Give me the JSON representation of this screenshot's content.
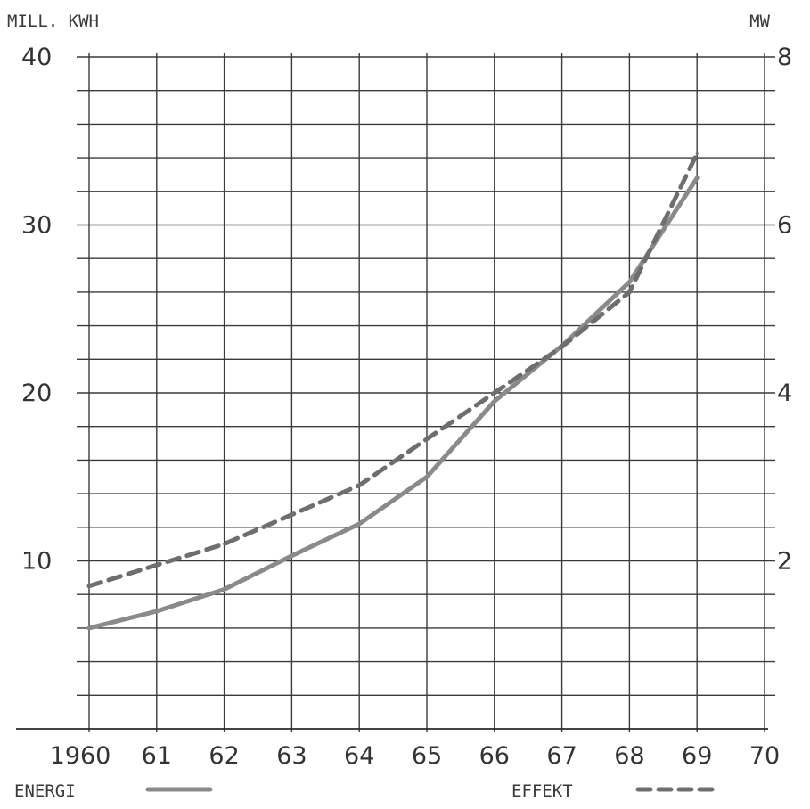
{
  "chart_data": {
    "type": "line",
    "left_axis_label": "MILL. KWH",
    "right_axis_label": "MW",
    "left_ylim": [
      0,
      40
    ],
    "right_ylim": [
      0,
      8
    ],
    "left_ticks": [
      "10",
      "20",
      "30",
      "40"
    ],
    "right_ticks": [
      "2",
      "4",
      "6",
      "8"
    ],
    "x_ticks": [
      "1960",
      "61",
      "62",
      "63",
      "64",
      "65",
      "66",
      "67",
      "68",
      "69",
      "70"
    ],
    "xlim": [
      1960,
      1970
    ],
    "grid": true,
    "series": [
      {
        "name": "ENERGI",
        "axis": "left",
        "style": "solid",
        "color": "#8a8a8a",
        "x": [
          1960,
          1961,
          1962,
          1963,
          1964,
          1965,
          1966,
          1967,
          1968,
          1969
        ],
        "y": [
          6.0,
          7.0,
          8.3,
          10.3,
          12.2,
          15.0,
          19.5,
          22.8,
          26.6,
          32.8
        ]
      },
      {
        "name": "EFFEKT",
        "axis": "right",
        "style": "dashed",
        "color": "#6e6e6e",
        "x": [
          1960,
          1961,
          1962,
          1963,
          1964,
          1965,
          1966,
          1967,
          1968,
          1969
        ],
        "y": [
          1.7,
          1.95,
          2.2,
          2.55,
          2.9,
          3.45,
          4.0,
          4.55,
          5.2,
          6.85
        ]
      }
    ],
    "legend": {
      "placement": "bottom",
      "entries": [
        "ENERGI",
        "EFFEKT"
      ]
    }
  }
}
